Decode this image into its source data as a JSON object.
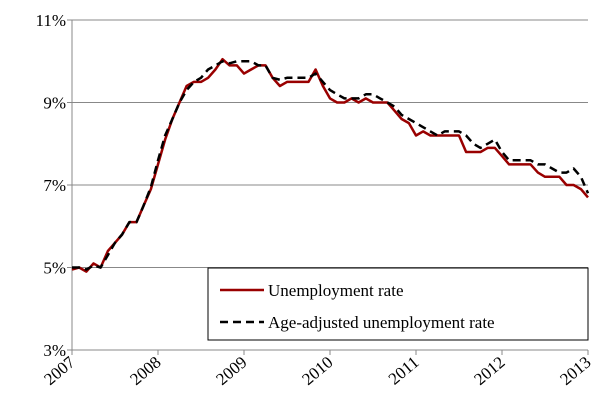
{
  "chart_data": {
    "type": "line",
    "x": [
      2007,
      2007.083,
      2007.167,
      2007.25,
      2007.333,
      2007.417,
      2007.5,
      2007.583,
      2007.667,
      2007.75,
      2007.833,
      2007.917,
      2008,
      2008.083,
      2008.167,
      2008.25,
      2008.333,
      2008.417,
      2008.5,
      2008.583,
      2008.667,
      2008.75,
      2008.833,
      2008.917,
      2009,
      2009.083,
      2009.167,
      2009.25,
      2009.333,
      2009.417,
      2009.5,
      2009.583,
      2009.667,
      2009.75,
      2009.833,
      2009.917,
      2010,
      2010.083,
      2010.167,
      2010.25,
      2010.333,
      2010.417,
      2010.5,
      2010.583,
      2010.667,
      2010.75,
      2010.833,
      2010.917,
      2011,
      2011.083,
      2011.167,
      2011.25,
      2011.333,
      2011.417,
      2011.5,
      2011.583,
      2011.667,
      2011.75,
      2011.833,
      2011.917,
      2012,
      2012.083,
      2012.167,
      2012.25,
      2012.333,
      2012.417,
      2012.5,
      2012.583,
      2012.667,
      2012.75,
      2012.833,
      2012.917,
      2013
    ],
    "series": [
      {
        "name": "Unemployment rate",
        "color": "#990000",
        "dash": false,
        "values": [
          4.95,
          5.0,
          4.9,
          5.1,
          5.0,
          5.4,
          5.6,
          5.8,
          6.1,
          6.1,
          6.5,
          6.9,
          7.5,
          8.1,
          8.6,
          9.0,
          9.4,
          9.5,
          9.5,
          9.6,
          9.8,
          10.05,
          9.9,
          9.9,
          9.7,
          9.8,
          9.9,
          9.9,
          9.6,
          9.4,
          9.5,
          9.5,
          9.5,
          9.5,
          9.8,
          9.4,
          9.1,
          9.0,
          9.0,
          9.1,
          9.0,
          9.1,
          9.0,
          9.0,
          9.0,
          8.8,
          8.6,
          8.5,
          8.2,
          8.3,
          8.2,
          8.2,
          8.2,
          8.2,
          8.2,
          7.8,
          7.8,
          7.8,
          7.9,
          7.9,
          7.7,
          7.5,
          7.5,
          7.5,
          7.5,
          7.3,
          7.2,
          7.2,
          7.2,
          7.0,
          7.0,
          6.9,
          6.7
        ]
      },
      {
        "name": "Age-adjusted unemployment rate",
        "color": "#000000",
        "dash": true,
        "values": [
          5.0,
          5.0,
          4.95,
          5.05,
          5.0,
          5.3,
          5.6,
          5.8,
          6.1,
          6.1,
          6.5,
          6.95,
          7.6,
          8.2,
          8.6,
          9.0,
          9.3,
          9.5,
          9.6,
          9.8,
          9.9,
          10.0,
          9.95,
          10.0,
          10.0,
          10.0,
          9.9,
          9.9,
          9.6,
          9.55,
          9.6,
          9.6,
          9.6,
          9.6,
          9.7,
          9.5,
          9.3,
          9.2,
          9.1,
          9.1,
          9.1,
          9.2,
          9.2,
          9.1,
          9.0,
          8.9,
          8.7,
          8.6,
          8.5,
          8.4,
          8.3,
          8.2,
          8.3,
          8.3,
          8.3,
          8.2,
          8.0,
          7.9,
          8.0,
          8.1,
          7.8,
          7.6,
          7.6,
          7.6,
          7.6,
          7.5,
          7.5,
          7.4,
          7.3,
          7.3,
          7.4,
          7.2,
          6.8
        ]
      }
    ],
    "xlim": [
      2007,
      2013
    ],
    "xticks": [
      2007,
      2008,
      2009,
      2010,
      2011,
      2012,
      2013
    ],
    "ylim": [
      3,
      11
    ],
    "yticks": [
      {
        "value": 3,
        "label": "3%"
      },
      {
        "value": 5,
        "label": "5%"
      },
      {
        "value": 7,
        "label": "7%"
      },
      {
        "value": 9,
        "label": "9%"
      },
      {
        "value": 11,
        "label": "11%"
      }
    ],
    "grid": true,
    "legend": "lower right"
  }
}
